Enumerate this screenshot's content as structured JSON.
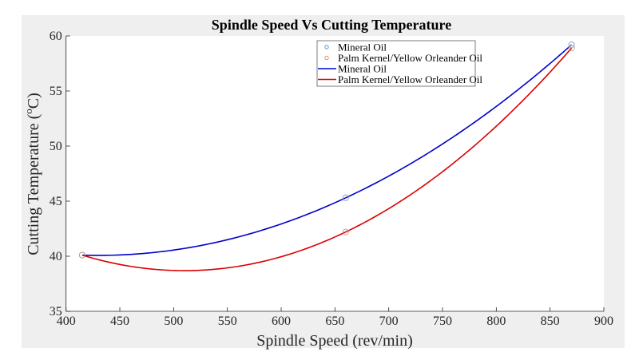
{
  "chart_data": {
    "type": "line",
    "title": "Spindle Speed Vs Cutting Temperature",
    "xlabel": "Spindle Speed (rev/min)",
    "ylabel_main": "Cutting Temperature (",
    "ylabel_sup": "o",
    "ylabel_end": "C)",
    "xlim": [
      400,
      900
    ],
    "ylim": [
      35,
      60
    ],
    "xticks": [
      400,
      450,
      500,
      550,
      600,
      650,
      700,
      750,
      800,
      850,
      900
    ],
    "yticks": [
      35,
      40,
      45,
      50,
      55,
      60
    ],
    "grid": false,
    "legend_position": "top-center",
    "x": [
      415,
      660,
      870
    ],
    "series": [
      {
        "name": "Mineral Oil",
        "kind": "markers",
        "marker": "circle",
        "color": "#4a90c8",
        "values": [
          40.1,
          45.3,
          59.2
        ]
      },
      {
        "name": "Palm Kernel/Yellow Orleander Oil",
        "kind": "markers",
        "marker": "circle",
        "color": "#d9875a",
        "values": [
          40.1,
          42.2,
          58.9
        ]
      },
      {
        "name": "Mineral Oil",
        "kind": "quadratic-fit",
        "color": "#0000cc",
        "values": [
          40.1,
          45.3,
          59.2
        ]
      },
      {
        "name": "Palm Kernel/Yellow Orleander Oil",
        "kind": "quadratic-fit",
        "color": "#dd0000",
        "values": [
          40.1,
          42.2,
          58.9
        ]
      }
    ]
  }
}
